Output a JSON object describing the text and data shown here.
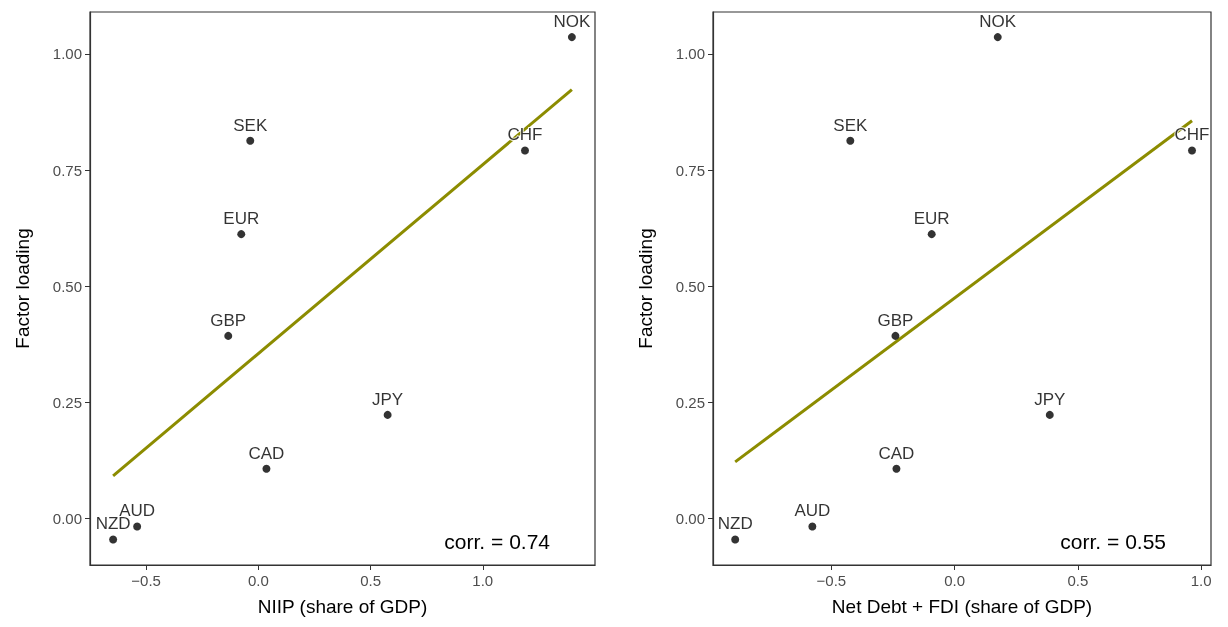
{
  "chart_data": [
    {
      "type": "scatter",
      "xlabel": "NIIP (share of GDP)",
      "ylabel": "Factor loading",
      "grid": false,
      "xlim": [
        -0.75,
        1.5
      ],
      "xticks": [
        {
          "value": -0.5,
          "label": "−0.5"
        },
        {
          "value": 0,
          "label": "0.0"
        },
        {
          "value": 0.5,
          "label": "0.5"
        },
        {
          "value": 1,
          "label": "1.0"
        }
      ],
      "ylim": [
        -0.1,
        1.09
      ],
      "yticks": [
        {
          "value": 0,
          "label": "0.00"
        },
        {
          "value": 0.25,
          "label": "0.25"
        },
        {
          "value": 0.5,
          "label": "0.50"
        },
        {
          "value": 0.75,
          "label": "0.75"
        },
        {
          "value": 1,
          "label": "1.00"
        }
      ],
      "annotations": [
        "corr. = 0.74"
      ],
      "series": [
        {
          "type": "line",
          "color": "#8c8c00",
          "x": [
            -0.647,
            1.397
          ],
          "values": [
            0.092,
            0.923
          ]
        },
        {
          "type": "scatter",
          "marker": "circle",
          "color": "#000000",
          "x": [
            1.397,
            -0.036,
            1.188,
            -0.076,
            -0.134,
            0.576,
            0.036,
            -0.54,
            -0.647
          ],
          "values": [
            1.036,
            0.813,
            0.792,
            0.612,
            0.393,
            0.223,
            0.107,
            -0.017,
            -0.045
          ],
          "value_labels": [
            "NOK",
            "SEK",
            "CHF",
            "EUR",
            "GBP",
            "JPY",
            "CAD",
            "AUD",
            "NZD"
          ]
        }
      ]
    },
    {
      "type": "scatter",
      "xlabel": "Net Debt + FDI (share of GDP)",
      "ylabel": "Factor loading",
      "grid": false,
      "xlim": [
        -0.98,
        1.04
      ],
      "xticks": [
        {
          "value": -0.5,
          "label": "−0.5"
        },
        {
          "value": 0,
          "label": "0.0"
        },
        {
          "value": 0.5,
          "label": "0.5"
        },
        {
          "value": 1,
          "label": "1.0"
        }
      ],
      "ylim": [
        -0.1,
        1.09
      ],
      "yticks": [
        {
          "value": 0,
          "label": "0.00"
        },
        {
          "value": 0.25,
          "label": "0.25"
        },
        {
          "value": 0.5,
          "label": "0.50"
        },
        {
          "value": 0.75,
          "label": "0.75"
        },
        {
          "value": 1,
          "label": "1.00"
        }
      ],
      "annotations": [
        "corr. = 0.55"
      ],
      "series": [
        {
          "type": "line",
          "color": "#8c8c00",
          "x": [
            -0.89,
            0.963
          ],
          "values": [
            0.122,
            0.856
          ]
        },
        {
          "type": "scatter",
          "marker": "circle",
          "color": "#000000",
          "x": [
            0.175,
            -0.423,
            0.963,
            -0.093,
            -0.24,
            0.386,
            -0.236,
            -0.577,
            -0.89
          ],
          "values": [
            1.036,
            0.813,
            0.792,
            0.612,
            0.393,
            0.223,
            0.107,
            -0.017,
            -0.045
          ],
          "value_labels": [
            "NOK",
            "SEK",
            "CHF",
            "EUR",
            "GBP",
            "JPY",
            "CAD",
            "AUD",
            "NZD"
          ]
        }
      ]
    }
  ]
}
